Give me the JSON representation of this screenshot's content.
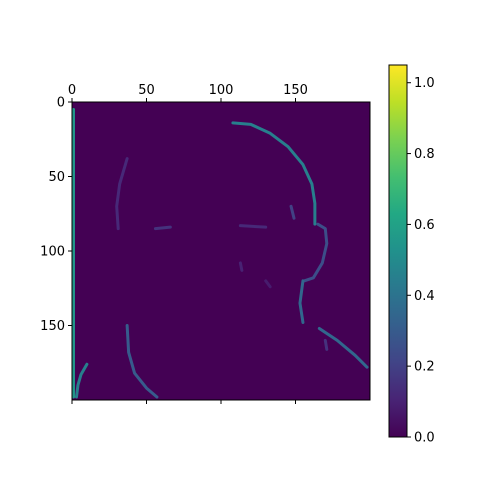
{
  "chart_data": {
    "type": "heatmap",
    "title": "",
    "xlabel": "",
    "ylabel": "",
    "xlim": [
      0,
      200
    ],
    "ylim": [
      200,
      0
    ],
    "x_axis_position": "top",
    "x_ticks": [
      0,
      50,
      100,
      150
    ],
    "y_ticks": [
      0,
      50,
      100,
      150
    ],
    "grid": false,
    "colormap": "viridis",
    "colorbar": {
      "range": [
        0.0,
        1.05
      ],
      "ticks": [
        "0.0",
        "0.2",
        "0.4",
        "0.6",
        "0.8",
        "1.0"
      ],
      "tick_values": [
        0.0,
        0.2,
        0.4,
        0.6,
        0.8,
        1.0
      ]
    },
    "background_value": 0.0,
    "features": [
      {
        "name": "left-edge-column",
        "kind": "polyline",
        "value": 0.55,
        "points": [
          [
            1,
            5
          ],
          [
            1,
            198
          ]
        ]
      },
      {
        "name": "bottom-left-corner",
        "kind": "polyline",
        "value": 0.45,
        "points": [
          [
            3,
            198
          ],
          [
            4,
            190
          ],
          [
            6,
            183
          ],
          [
            10,
            176
          ]
        ]
      },
      {
        "name": "head-top-contour",
        "kind": "polyline",
        "value": 0.45,
        "points": [
          [
            108,
            14
          ],
          [
            120,
            15
          ],
          [
            133,
            21
          ],
          [
            145,
            30
          ],
          [
            155,
            42
          ],
          [
            161,
            55
          ],
          [
            163,
            68
          ],
          [
            163,
            82
          ]
        ]
      },
      {
        "name": "ear-outline",
        "kind": "polyline",
        "value": 0.25,
        "points": [
          [
            165,
            82
          ],
          [
            170,
            85
          ],
          [
            171,
            95
          ],
          [
            168,
            108
          ],
          [
            162,
            118
          ],
          [
            156,
            120
          ]
        ]
      },
      {
        "name": "jaw-contour",
        "kind": "polyline",
        "value": 0.35,
        "points": [
          [
            155,
            120
          ],
          [
            153,
            135
          ],
          [
            155,
            148
          ]
        ]
      },
      {
        "name": "neck-shoulder-line",
        "kind": "polyline",
        "value": 0.35,
        "points": [
          [
            166,
            152
          ],
          [
            178,
            160
          ],
          [
            190,
            170
          ],
          [
            198,
            178
          ]
        ]
      },
      {
        "name": "face-left-contour",
        "kind": "polyline",
        "value": 0.12,
        "points": [
          [
            37,
            38
          ],
          [
            32,
            55
          ],
          [
            30,
            70
          ],
          [
            31,
            85
          ]
        ]
      },
      {
        "name": "chin-left-line",
        "kind": "polyline",
        "value": 0.3,
        "points": [
          [
            37,
            150
          ],
          [
            38,
            168
          ],
          [
            42,
            182
          ],
          [
            50,
            192
          ],
          [
            57,
            198
          ]
        ]
      },
      {
        "name": "eyebrow-left",
        "kind": "polyline",
        "value": 0.15,
        "points": [
          [
            56,
            85
          ],
          [
            66,
            84
          ]
        ]
      },
      {
        "name": "eyebrow-right",
        "kind": "polyline",
        "value": 0.12,
        "points": [
          [
            113,
            83
          ],
          [
            130,
            84
          ]
        ]
      },
      {
        "name": "face-mid-mark",
        "kind": "polyline",
        "value": 0.1,
        "points": [
          [
            113,
            108
          ],
          [
            114,
            113
          ]
        ]
      },
      {
        "name": "cheek-mark",
        "kind": "polyline",
        "value": 0.08,
        "points": [
          [
            130,
            120
          ],
          [
            133,
            124
          ]
        ]
      },
      {
        "name": "hair-tick",
        "kind": "polyline",
        "value": 0.2,
        "points": [
          [
            147,
            70
          ],
          [
            149,
            78
          ]
        ]
      },
      {
        "name": "lower-right-speck",
        "kind": "polyline",
        "value": 0.15,
        "points": [
          [
            170,
            160
          ],
          [
            171,
            166
          ]
        ]
      }
    ]
  }
}
